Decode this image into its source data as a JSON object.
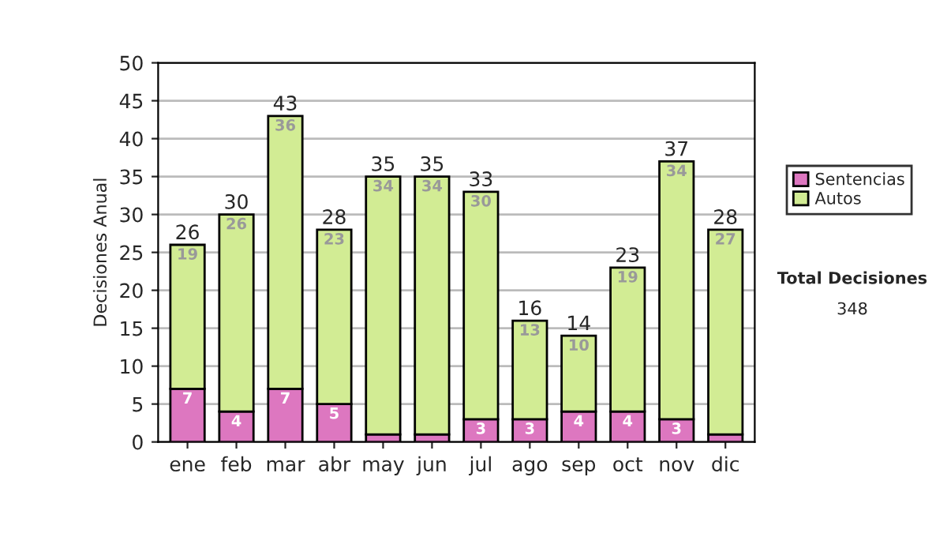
{
  "chart_data": {
    "type": "bar",
    "stacked": true,
    "ylabel": "Decisiones Anual",
    "categories": [
      "ene",
      "feb",
      "mar",
      "abr",
      "may",
      "jun",
      "jul",
      "ago",
      "sep",
      "oct",
      "nov",
      "dic"
    ],
    "series": [
      {
        "name": "Sentencias",
        "color": "#dd77c0",
        "values": [
          7,
          4,
          7,
          5,
          1,
          1,
          3,
          3,
          4,
          4,
          3,
          1
        ],
        "value_labels": [
          "7",
          "4",
          "7",
          "5",
          null,
          null,
          "3",
          "3",
          "4",
          "4",
          "3",
          null
        ]
      },
      {
        "name": "Autos",
        "color": "#d2ec94",
        "values": [
          19,
          26,
          36,
          23,
          34,
          34,
          30,
          13,
          10,
          19,
          34,
          27
        ],
        "value_labels": [
          "19",
          "26",
          "36",
          "23",
          "34",
          "34",
          "30",
          "13",
          "10",
          "19",
          "34",
          "27"
        ]
      }
    ],
    "totals": [
      "26",
      "30",
      "43",
      "28",
      "35",
      "35",
      "33",
      "16",
      "14",
      "23",
      "37",
      "28"
    ],
    "ylim": [
      0,
      50
    ],
    "yticks": [
      0,
      5,
      10,
      15,
      20,
      25,
      30,
      35,
      40,
      45,
      50
    ],
    "grid": "y",
    "legend": "right",
    "annotations": [
      "Total Decisiones",
      "348"
    ]
  }
}
